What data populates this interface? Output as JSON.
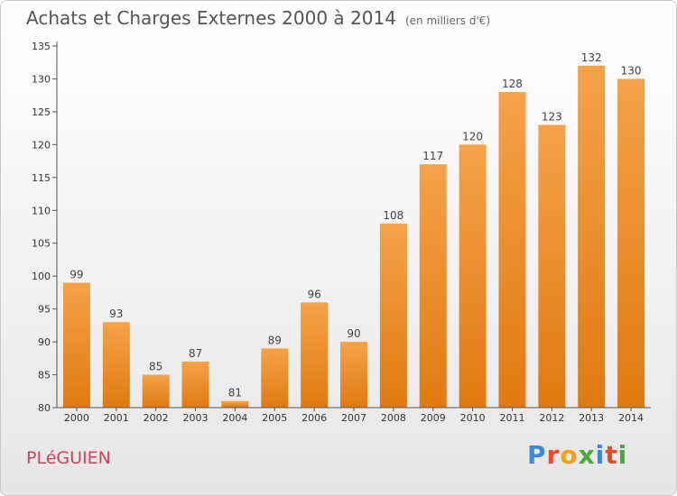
{
  "header": {
    "title": "Achats et Charges Externes 2000 à 2014",
    "subtitle": "(en milliers d'€)"
  },
  "commune": "PLéGUIEN",
  "logo": {
    "text": "Proxiti",
    "letters": [
      {
        "char": "P",
        "color": "#3b8ad8"
      },
      {
        "char": "r",
        "color": "#e74c2a"
      },
      {
        "char": "o",
        "color": "#f2a30f"
      },
      {
        "char": "x",
        "color": "#4aa83a"
      },
      {
        "char": "i",
        "color": "#3b8ad8"
      },
      {
        "char": "t",
        "color": "#e74c2a"
      },
      {
        "char": "i",
        "color": "#4aa83a"
      }
    ]
  },
  "chart_data": {
    "type": "bar",
    "categories": [
      "2000",
      "2001",
      "2002",
      "2003",
      "2004",
      "2005",
      "2006",
      "2007",
      "2008",
      "2009",
      "2010",
      "2011",
      "2012",
      "2013",
      "2014"
    ],
    "values": [
      99,
      93,
      85,
      87,
      81,
      89,
      96,
      90,
      108,
      117,
      120,
      128,
      123,
      132,
      130
    ],
    "ylim": [
      80,
      135
    ],
    "yticks": [
      80,
      85,
      90,
      95,
      100,
      105,
      110,
      115,
      120,
      125,
      130,
      135
    ],
    "grid": false,
    "bar_color_top": "#f5a24a",
    "bar_color_bottom": "#e07a10"
  }
}
